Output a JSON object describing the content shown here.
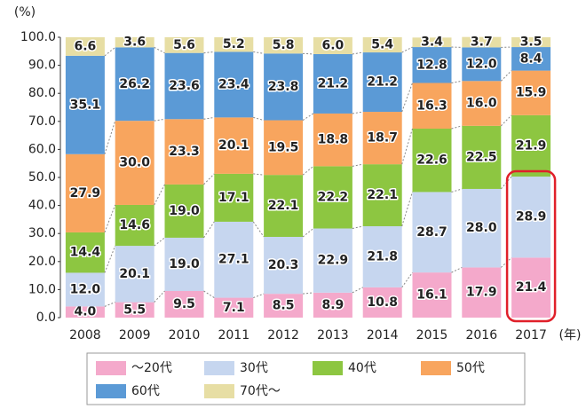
{
  "chart_data": {
    "type": "stacked_bar",
    "y_unit": "(%)",
    "x_unit": "(年)",
    "categories": [
      "2008",
      "2009",
      "2010",
      "2011",
      "2012",
      "2013",
      "2014",
      "2015",
      "2016",
      "2017"
    ],
    "series": [
      {
        "name": "～20代",
        "color": "#f4a9cb",
        "values": [
          4.0,
          5.5,
          9.5,
          7.1,
          8.5,
          8.9,
          10.8,
          16.1,
          17.9,
          21.4
        ],
        "value_labels": [
          "4.0",
          "5.5",
          "9.5",
          "7.1",
          "8.5",
          "8.9",
          "10.8",
          "16.1",
          "17.9",
          "21.4"
        ]
      },
      {
        "name": "30代",
        "color": "#c6d6ef",
        "values": [
          12.0,
          20.1,
          19.0,
          27.1,
          20.3,
          22.9,
          21.8,
          28.7,
          28.0,
          28.9
        ],
        "value_labels": [
          "12.0",
          "20.1",
          "19.0",
          "27.1",
          "20.3",
          "22.9",
          "21.8",
          "28.7",
          "28.0",
          "28.9"
        ]
      },
      {
        "name": "40代",
        "color": "#8dc641",
        "values": [
          14.4,
          14.6,
          19.0,
          17.1,
          22.1,
          22.2,
          22.1,
          22.6,
          22.5,
          21.9
        ],
        "value_labels": [
          "14.4",
          "14.6",
          "19.0",
          "17.1",
          "22.1",
          "22.2",
          "22.1",
          "22.6",
          "22.5",
          "21.9"
        ]
      },
      {
        "name": "50代",
        "color": "#f8a55e",
        "values": [
          27.9,
          30.0,
          23.3,
          20.1,
          19.5,
          18.8,
          18.7,
          16.3,
          16.0,
          15.9
        ],
        "value_labels": [
          "27.9",
          "30.0",
          "23.3",
          "20.1",
          "19.5",
          "18.8",
          "18.7",
          "16.3",
          "16.0",
          "15.9"
        ]
      },
      {
        "name": "60代",
        "color": "#5b9ad6",
        "values": [
          35.1,
          26.2,
          23.6,
          23.4,
          23.8,
          21.2,
          21.2,
          12.8,
          12.0,
          8.4
        ],
        "value_labels": [
          "35.1",
          "26.2",
          "23.6",
          "23.4",
          "23.8",
          "21.2",
          "21.2",
          "12.8",
          "12.0",
          "8.4"
        ]
      },
      {
        "name": "70代～",
        "color": "#e7dea4",
        "values": [
          6.6,
          3.6,
          5.6,
          5.2,
          5.8,
          6.0,
          5.4,
          3.4,
          3.7,
          3.5
        ],
        "value_labels": [
          "6.6",
          "3.6",
          "5.6",
          "5.2",
          "5.8",
          "6.0",
          "5.4",
          "3.4",
          "3.7",
          "3.5"
        ]
      }
    ],
    "ylim": [
      0,
      100
    ],
    "yticks": [
      {
        "value": 0,
        "label": "0.0"
      },
      {
        "value": 10,
        "label": "10.0"
      },
      {
        "value": 20,
        "label": "20.0"
      },
      {
        "value": 30,
        "label": "30.0"
      },
      {
        "value": 40,
        "label": "40.0"
      },
      {
        "value": 50,
        "label": "50.0"
      },
      {
        "value": 60,
        "label": "60.0"
      },
      {
        "value": 70,
        "label": "70.0"
      },
      {
        "value": 80,
        "label": "80.0"
      },
      {
        "value": 90,
        "label": "90.0"
      },
      {
        "value": 100,
        "label": "100.0"
      }
    ],
    "highlight_color": "#e0202a"
  }
}
